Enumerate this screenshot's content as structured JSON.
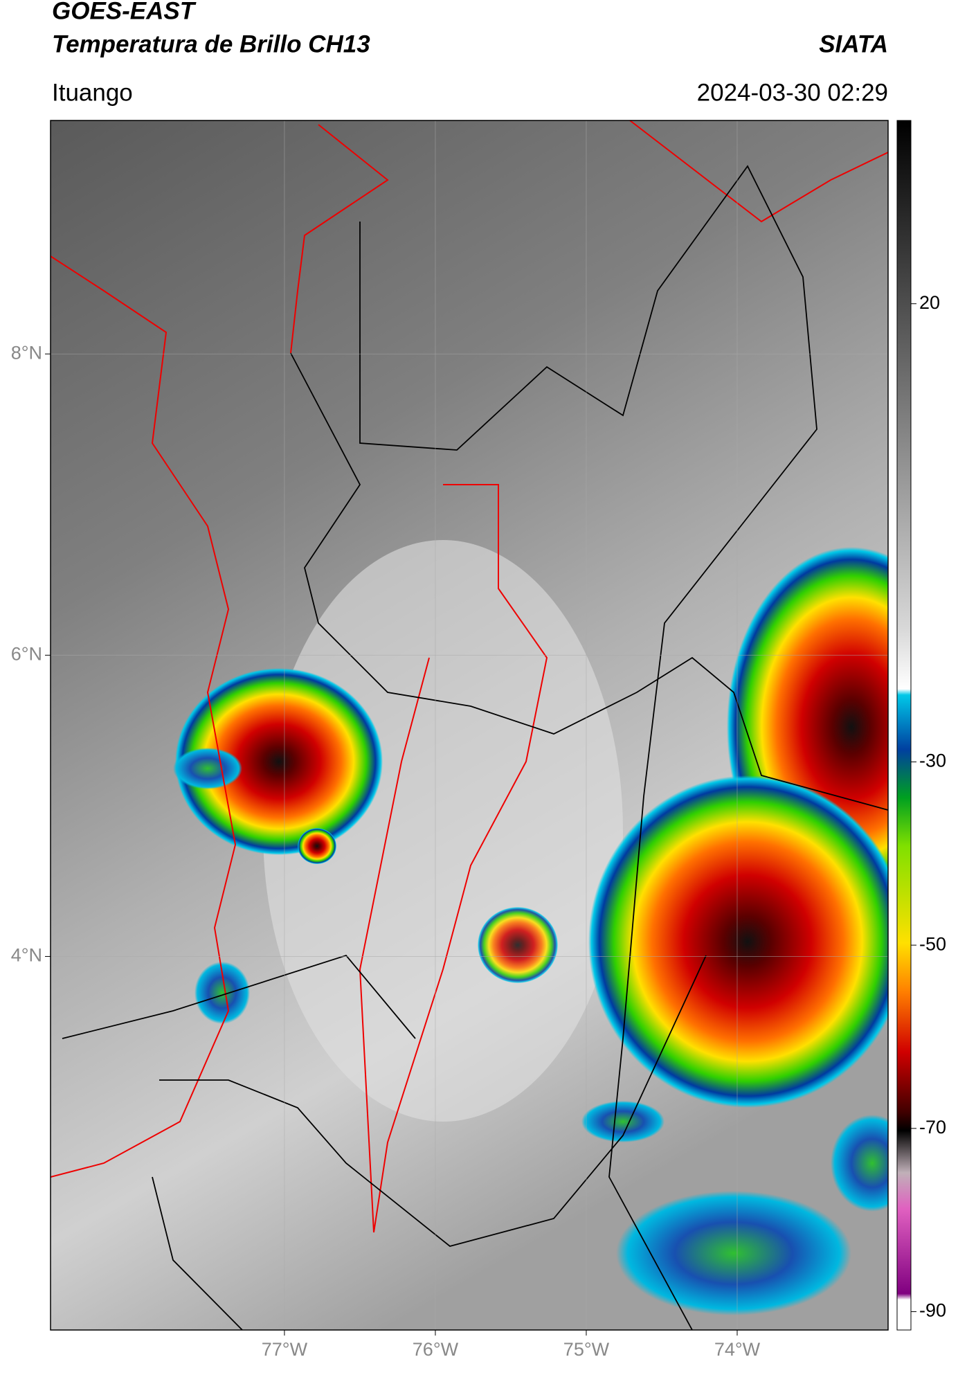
{
  "header": {
    "title": "GOES-EAST",
    "subtitle": "Temperatura de Brillo CH13",
    "source": "SIATA",
    "location": "Ituango",
    "timestamp": "2024-03-30 02:29"
  },
  "map": {
    "lonlim": [
      -78.55,
      -73.0
    ],
    "latlim": [
      1.52,
      9.55
    ],
    "lat_ticks": [
      {
        "value": 8,
        "label": "8°N"
      },
      {
        "value": 6,
        "label": "6°N"
      },
      {
        "value": 4,
        "label": "4°N"
      }
    ],
    "lon_ticks": [
      {
        "value": -77,
        "label": "77°W"
      },
      {
        "value": -76,
        "label": "76°W"
      },
      {
        "value": -75,
        "label": "75°W"
      },
      {
        "value": -74,
        "label": "74°W"
      }
    ]
  },
  "colorbar": {
    "lim": [
      -92,
      40
    ],
    "ticks": [
      20,
      -30,
      -50,
      -70,
      -90
    ]
  }
}
